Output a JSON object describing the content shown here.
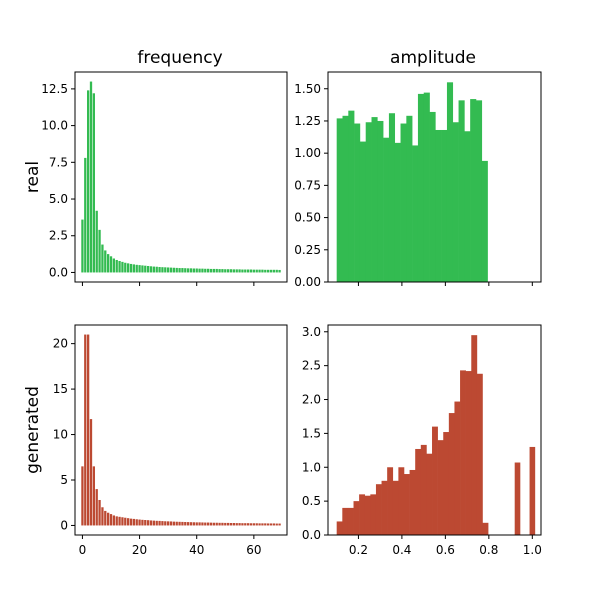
{
  "titles": {
    "col_left": "frequency",
    "col_right": "amplitude"
  },
  "row_labels": {
    "top": "real",
    "bottom": "generated"
  },
  "colors": {
    "real": "#33bb51",
    "generated": "#bc4932",
    "axis": "#000000"
  },
  "chart_data": [
    {
      "type": "bar",
      "panel": "real-frequency",
      "title": "frequency",
      "ylabel": "real",
      "xlim": [
        -2.6,
        71.6
      ],
      "ylim": [
        -0.65,
        13.65
      ],
      "x_ticks": [
        0,
        20,
        40,
        60
      ],
      "x_tick_labels_shown": false,
      "y_ticks": [
        0.0,
        2.5,
        5.0,
        7.5,
        10.0,
        12.5
      ],
      "y_tick_labels": [
        "0.0",
        "2.5",
        "5.0",
        "7.5",
        "10.0",
        "12.5"
      ],
      "bar_width": 0.8,
      "x": [
        0,
        1,
        2,
        3,
        4,
        5,
        6,
        7,
        8,
        9,
        10,
        11,
        12,
        13,
        14,
        15,
        16,
        17,
        18,
        19,
        20,
        21,
        22,
        23,
        24,
        25,
        26,
        27,
        28,
        29,
        30,
        31,
        32,
        33,
        34,
        35,
        36,
        37,
        38,
        39,
        40,
        41,
        42,
        43,
        44,
        45,
        46,
        47,
        48,
        49,
        50,
        51,
        52,
        53,
        54,
        55,
        56,
        57,
        58,
        59,
        60,
        61,
        62,
        63,
        64,
        65,
        66,
        67,
        68,
        69
      ],
      "values": [
        3.6,
        7.8,
        12.4,
        13.0,
        12.2,
        4.2,
        2.9,
        1.9,
        1.5,
        1.25,
        1.1,
        0.95,
        0.85,
        0.78,
        0.72,
        0.66,
        0.62,
        0.58,
        0.55,
        0.52,
        0.5,
        0.48,
        0.46,
        0.44,
        0.42,
        0.4,
        0.39,
        0.37,
        0.36,
        0.35,
        0.34,
        0.33,
        0.32,
        0.31,
        0.3,
        0.3,
        0.29,
        0.28,
        0.28,
        0.27,
        0.27,
        0.26,
        0.26,
        0.25,
        0.25,
        0.24,
        0.24,
        0.24,
        0.23,
        0.23,
        0.22,
        0.22,
        0.22,
        0.21,
        0.21,
        0.21,
        0.2,
        0.2,
        0.2,
        0.2,
        0.19,
        0.19,
        0.19,
        0.19,
        0.18,
        0.18,
        0.18,
        0.18,
        0.18,
        0.17
      ]
    },
    {
      "type": "bar",
      "panel": "real-amplitude",
      "title": "amplitude",
      "xlim": [
        0.06,
        1.04
      ],
      "ylim": [
        0.0,
        1.63
      ],
      "x_ticks": [
        0.2,
        0.4,
        0.6,
        0.8,
        1.0
      ],
      "x_tick_labels_shown": false,
      "y_ticks": [
        0.0,
        0.25,
        0.5,
        0.75,
        1.0,
        1.25,
        1.5
      ],
      "y_tick_labels": [
        "0.00",
        "0.25",
        "0.50",
        "0.75",
        "1.00",
        "1.25",
        "1.50"
      ],
      "bin_edges_start": 0.1,
      "bin_width": 0.0267,
      "values": [
        1.27,
        1.29,
        1.33,
        1.23,
        1.09,
        1.24,
        1.28,
        1.25,
        1.12,
        1.31,
        1.08,
        1.23,
        1.29,
        1.06,
        1.46,
        1.47,
        1.32,
        1.18,
        1.18,
        1.55,
        1.24,
        1.41,
        1.17,
        1.42,
        1.41,
        0.94
      ]
    },
    {
      "type": "bar",
      "panel": "generated-frequency",
      "ylabel": "generated",
      "xlim": [
        -2.6,
        71.6
      ],
      "ylim": [
        -1.05,
        22.05
      ],
      "x_ticks": [
        0,
        20,
        40,
        60
      ],
      "x_tick_labels": [
        "0",
        "20",
        "40",
        "60"
      ],
      "y_ticks": [
        0,
        5,
        10,
        15,
        20
      ],
      "y_tick_labels": [
        "0",
        "5",
        "10",
        "15",
        "20"
      ],
      "bar_width": 0.8,
      "x": [
        0,
        1,
        2,
        3,
        4,
        5,
        6,
        7,
        8,
        9,
        10,
        11,
        12,
        13,
        14,
        15,
        16,
        17,
        18,
        19,
        20,
        21,
        22,
        23,
        24,
        25,
        26,
        27,
        28,
        29,
        30,
        31,
        32,
        33,
        34,
        35,
        36,
        37,
        38,
        39,
        40,
        41,
        42,
        43,
        44,
        45,
        46,
        47,
        48,
        49,
        50,
        51,
        52,
        53,
        54,
        55,
        56,
        57,
        58,
        59,
        60,
        61,
        62,
        63,
        64,
        65,
        66,
        67,
        68,
        69
      ],
      "values": [
        6.5,
        21.0,
        21.0,
        11.7,
        6.5,
        4.0,
        2.8,
        2.0,
        1.6,
        1.4,
        1.25,
        1.1,
        1.0,
        0.95,
        0.9,
        0.85,
        0.8,
        0.75,
        0.72,
        0.68,
        0.65,
        0.62,
        0.6,
        0.58,
        0.55,
        0.53,
        0.51,
        0.5,
        0.48,
        0.46,
        0.45,
        0.44,
        0.42,
        0.41,
        0.4,
        0.39,
        0.38,
        0.37,
        0.36,
        0.35,
        0.34,
        0.34,
        0.33,
        0.32,
        0.32,
        0.31,
        0.3,
        0.3,
        0.29,
        0.29,
        0.28,
        0.28,
        0.27,
        0.27,
        0.26,
        0.26,
        0.25,
        0.25,
        0.25,
        0.24,
        0.24,
        0.24,
        0.23,
        0.23,
        0.23,
        0.22,
        0.22,
        0.22,
        0.21,
        0.21
      ]
    },
    {
      "type": "bar",
      "panel": "generated-amplitude",
      "xlim": [
        0.06,
        1.04
      ],
      "ylim": [
        0.0,
        3.1
      ],
      "x_ticks": [
        0.2,
        0.4,
        0.6,
        0.8,
        1.0
      ],
      "x_tick_labels": [
        "0.2",
        "0.4",
        "0.6",
        "0.8",
        "1.0"
      ],
      "y_ticks": [
        0.0,
        0.5,
        1.0,
        1.5,
        2.0,
        2.5,
        3.0
      ],
      "y_tick_labels": [
        "0.0",
        "0.5",
        "1.0",
        "1.5",
        "2.0",
        "2.5",
        "3.0"
      ],
      "bin_edges_start": 0.1,
      "bin_width": 0.0258,
      "values": [
        0.2,
        0.4,
        0.4,
        0.5,
        0.6,
        0.58,
        0.6,
        0.75,
        0.8,
        1.0,
        0.8,
        1.0,
        0.9,
        0.96,
        1.27,
        1.33,
        1.2,
        1.6,
        1.4,
        1.52,
        1.8,
        1.97,
        2.43,
        2.42,
        2.95,
        2.38,
        0.18,
        0.0,
        0.0,
        0.0,
        0.0,
        0.0,
        0.0,
        0.0,
        0.0
      ],
      "extra_bars": [
        {
          "x": 0.919,
          "value": 1.07
        },
        {
          "x": 0.97,
          "value": 0.0
        },
        {
          "x": 0.9874,
          "value": 1.3
        }
      ]
    }
  ]
}
